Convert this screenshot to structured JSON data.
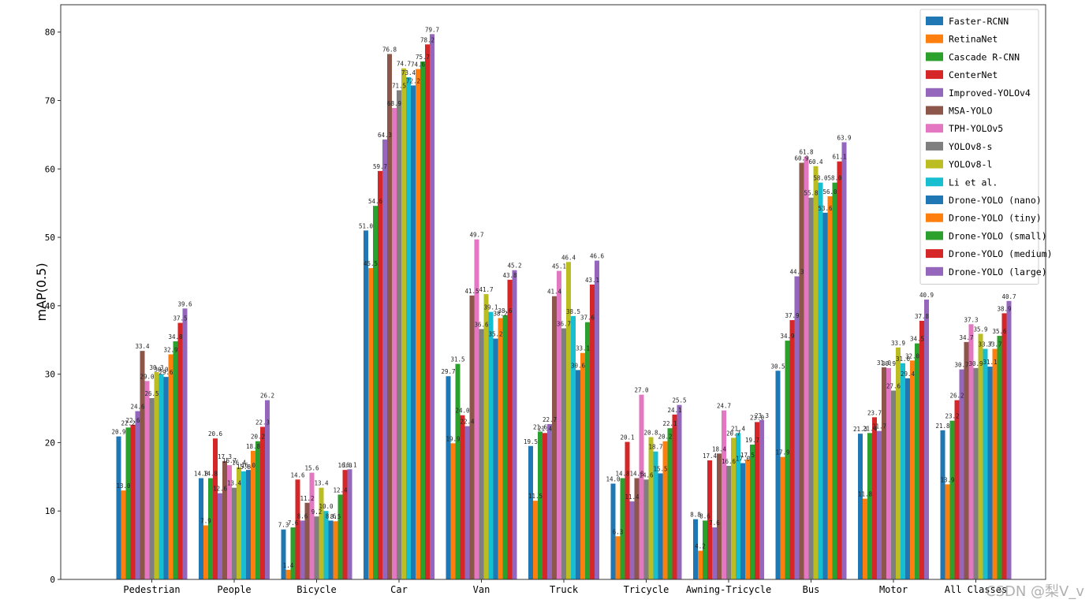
{
  "chart_data": {
    "type": "bar",
    "ylabel": "mAP(0.5)",
    "ylim": [
      0,
      84
    ],
    "yticks": [
      0,
      10,
      20,
      30,
      40,
      50,
      60,
      70,
      80
    ],
    "grid": false,
    "legend_position": "top-right",
    "categories": [
      "Pedestrian",
      "People",
      "Bicycle",
      "Car",
      "Van",
      "Truck",
      "Tricycle",
      "Awning-Tricycle",
      "Bus",
      "Motor",
      "All Classes"
    ],
    "series": [
      {
        "name": "Faster-RCNN",
        "color": "#1f77b4",
        "values": [
          20.9,
          14.8,
          7.3,
          51.0,
          29.7,
          19.5,
          14.0,
          8.8,
          30.5,
          21.3,
          21.8
        ]
      },
      {
        "name": "RetinaNet",
        "color": "#ff7f0e",
        "values": [
          13.0,
          7.9,
          1.4,
          45.5,
          19.9,
          11.5,
          6.3,
          4.2,
          17.9,
          11.8,
          13.9
        ]
      },
      {
        "name": "Cascade R-CNN",
        "color": "#2ca02c",
        "values": [
          22.2,
          14.8,
          7.6,
          54.6,
          31.5,
          21.6,
          14.8,
          8.6,
          34.9,
          21.4,
          23.2
        ]
      },
      {
        "name": "CenterNet",
        "color": "#d62728",
        "values": [
          22.6,
          20.6,
          14.6,
          59.7,
          24.0,
          21.4,
          20.1,
          17.4,
          37.9,
          23.7,
          26.2
        ]
      },
      {
        "name": "Improved-YOLOv4",
        "color": "#9467bd",
        "values": [
          24.6,
          12.6,
          8.6,
          64.3,
          22.4,
          22.7,
          11.4,
          7.6,
          44.3,
          21.7,
          30.7
        ]
      },
      {
        "name": "MSA-YOLO",
        "color": "#8c564b",
        "values": [
          33.4,
          17.3,
          11.2,
          76.8,
          41.5,
          41.4,
          14.8,
          18.4,
          60.9,
          31.0,
          34.7
        ]
      },
      {
        "name": "TPH-YOLOv5",
        "color": "#e377c2",
        "values": [
          29.0,
          16.7,
          15.6,
          68.9,
          49.7,
          45.1,
          27.0,
          24.7,
          61.8,
          30.9,
          37.3
        ]
      },
      {
        "name": "YOLOv8-s",
        "color": "#7f7f7f",
        "values": [
          26.5,
          13.4,
          9.2,
          71.5,
          36.6,
          36.7,
          14.6,
          16.6,
          55.8,
          27.6,
          30.9
        ]
      },
      {
        "name": "YOLOv8-l",
        "color": "#bcbd22",
        "values": [
          30.3,
          16.4,
          13.4,
          74.7,
          41.7,
          46.4,
          20.8,
          20.7,
          60.4,
          33.9,
          35.9
        ]
      },
      {
        "name": "Li et al.",
        "color": "#17becf",
        "values": [
          30.0,
          15.8,
          10.0,
          73.4,
          39.1,
          38.5,
          18.7,
          21.4,
          58.0,
          31.6,
          33.7
        ]
      },
      {
        "name": "Drone-YOLO (nano)",
        "color": "#1f77b4",
        "values": [
          29.6,
          16.0,
          8.6,
          72.2,
          35.2,
          30.6,
          15.5,
          17.0,
          53.6,
          29.4,
          31.1
        ]
      },
      {
        "name": "Drone-YOLO (tiny)",
        "color": "#ff7f0e",
        "values": [
          32.9,
          18.8,
          8.5,
          74.6,
          38.2,
          33.1,
          20.2,
          17.5,
          56.0,
          32.0,
          33.7
        ]
      },
      {
        "name": "Drone-YOLO (small)",
        "color": "#2ca02c",
        "values": [
          34.8,
          20.2,
          12.4,
          75.7,
          38.6,
          37.6,
          22.1,
          19.7,
          58.0,
          34.5,
          35.6
        ]
      },
      {
        "name": "Drone-YOLO (medium)",
        "color": "#d62728",
        "values": [
          37.5,
          22.3,
          16.0,
          78.2,
          43.8,
          43.1,
          24.1,
          23.0,
          61.1,
          37.8,
          38.9
        ]
      },
      {
        "name": "Drone-YOLO (large)",
        "color": "#9467bd",
        "values": [
          39.6,
          26.2,
          16.1,
          79.7,
          45.2,
          46.6,
          25.5,
          23.3,
          63.9,
          40.9,
          40.7
        ]
      }
    ]
  },
  "watermark": "CSDN @梨V_v"
}
